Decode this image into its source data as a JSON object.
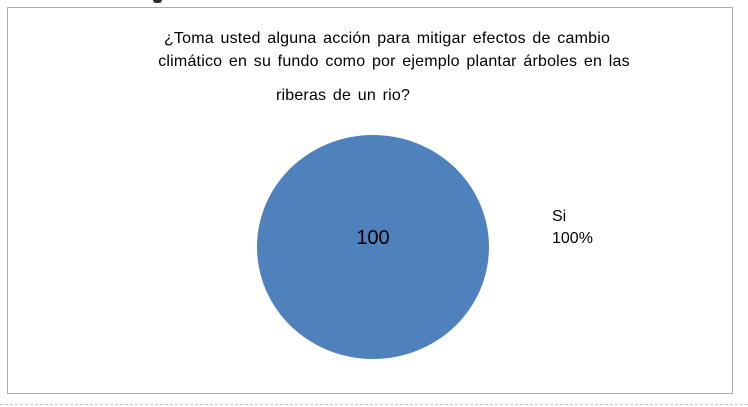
{
  "chart": {
    "title_line1": "¿Toma usted alguna acción para mitigar efectos de cambio",
    "title_line2": "climático en su fundo como por ejemplo plantar árboles en las",
    "title_line3": "riberas de un rio?",
    "pie_value_label": "100",
    "legend_name": "Si",
    "legend_percent": "100%"
  },
  "chart_data": {
    "type": "pie",
    "title": "¿Toma usted alguna acción para mitigar efectos de cambio climático en su fundo como por ejemplo plantar árboles en las riberas de un rio?",
    "labels": [
      "Si"
    ],
    "values": [
      100
    ],
    "value_unit": "percent",
    "slice_data_labels": [
      "100"
    ],
    "outer_labels": [
      "Si 100%"
    ],
    "colors": [
      "#4f81bd"
    ],
    "legend_position": "right",
    "background_color": "#ffffff",
    "frame_border_color": "#aeaeae"
  }
}
